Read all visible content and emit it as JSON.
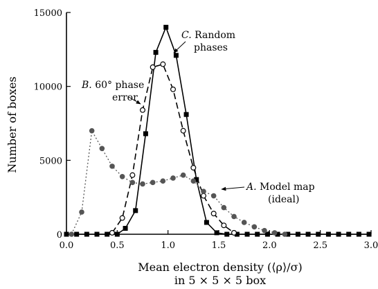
{
  "chart_data": {
    "type": "line",
    "xlabel": "Mean electron density (⟨ρ⟩/σ)",
    "xlabel_line2": "in 5 × 5 × 5 box",
    "ylabel": "Number of boxes",
    "xlim": [
      0,
      3.0
    ],
    "ylim": [
      0,
      15000
    ],
    "x_ticks": [
      "0.0",
      "0.5",
      "1.0",
      "1.5",
      "2.0",
      "2.5",
      "3.0"
    ],
    "y_ticks": [
      "0",
      "5000",
      "10000",
      "15000"
    ],
    "grid": false,
    "legend": "none",
    "series": [
      {
        "name": "C. Random phases",
        "label_letter": "C.",
        "label_lines": [
          "Random",
          "phases"
        ],
        "style": "solid",
        "marker": "filled-square",
        "color": "#000000",
        "x": [
          0.0,
          0.1,
          0.2,
          0.3,
          0.4,
          0.5,
          0.58,
          0.68,
          0.78,
          0.88,
          0.98,
          1.08,
          1.18,
          1.28,
          1.38,
          1.48,
          1.58,
          1.68,
          1.78,
          1.88,
          1.98,
          2.08,
          2.18,
          2.28,
          2.38,
          2.48,
          2.58,
          2.68,
          2.78,
          2.88,
          2.98
        ],
        "y": [
          0,
          0,
          0,
          0,
          0,
          0,
          400,
          1600,
          6800,
          12300,
          14000,
          12100,
          8100,
          3700,
          800,
          100,
          0,
          0,
          0,
          0,
          0,
          0,
          0,
          0,
          0,
          0,
          0,
          0,
          0,
          0,
          0
        ]
      },
      {
        "name": "B. 60° phase error",
        "label_letter": "B.",
        "label_lines": [
          "60° phase",
          "error"
        ],
        "style": "dashed",
        "marker": "open-circle",
        "color": "#000000",
        "x": [
          0.45,
          0.55,
          0.65,
          0.75,
          0.85,
          0.95,
          1.05,
          1.15,
          1.25,
          1.35,
          1.45,
          1.55,
          1.65
        ],
        "y": [
          100,
          1100,
          4000,
          8400,
          11300,
          11500,
          9800,
          7000,
          4500,
          2600,
          1400,
          600,
          100
        ]
      },
      {
        "name": "A. Model map (ideal)",
        "label_letter": "A.",
        "label_lines": [
          "Model map",
          "(ideal)"
        ],
        "style": "dotted",
        "marker": "filled-circle",
        "color": "#555555",
        "x": [
          0.05,
          0.15,
          0.25,
          0.35,
          0.45,
          0.55,
          0.65,
          0.75,
          0.85,
          0.95,
          1.05,
          1.15,
          1.25,
          1.35,
          1.45,
          1.55,
          1.65,
          1.75,
          1.85,
          1.95,
          2.05,
          2.15
        ],
        "y": [
          0,
          1500,
          7000,
          5800,
          4600,
          3900,
          3500,
          3400,
          3500,
          3600,
          3800,
          4000,
          3600,
          2900,
          2600,
          1800,
          1200,
          800,
          500,
          250,
          100,
          0
        ]
      }
    ]
  }
}
